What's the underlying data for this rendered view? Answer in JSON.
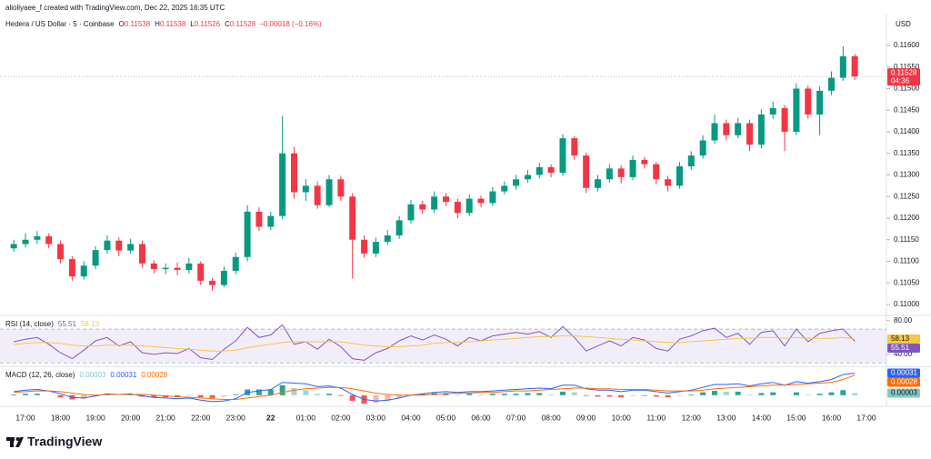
{
  "header": {
    "author_line": "alioliyaee_f created with TradingView.com, Dec 22, 2025 16:35 UTC",
    "symbol": "Hedera / US Dollar · 5 · Coinbase",
    "ohlc": [
      {
        "key": "O",
        "value": "0.11538"
      },
      {
        "key": "H",
        "value": "0.11538"
      },
      {
        "key": "L",
        "value": "0.11526"
      },
      {
        "key": "C",
        "value": "0.11528"
      }
    ],
    "change": "−0.00018 (−0.16%)"
  },
  "footer": {
    "brand": "TradingView"
  },
  "chart_data": [
    {
      "type": "candlestick",
      "currency": "USD",
      "countdown": "04:36",
      "up_color": "#089981",
      "down_color": "#f23645",
      "categories": [
        null,
        "17:00",
        null,
        null,
        "18:00",
        null,
        null,
        "19:00",
        null,
        null,
        "20:00",
        null,
        null,
        "21:00",
        null,
        null,
        "22:00",
        null,
        null,
        "23:00",
        null,
        null,
        "22",
        null,
        null,
        "01:00",
        null,
        null,
        "02:00",
        null,
        null,
        "03:00",
        null,
        null,
        "04:00",
        null,
        null,
        "05:00",
        null,
        null,
        "06:00",
        null,
        null,
        "07:00",
        null,
        null,
        "08:00",
        null,
        null,
        "09:00",
        null,
        null,
        "10:00",
        null,
        null,
        "11:00",
        null,
        null,
        "12:00",
        null,
        null,
        "13:00",
        null,
        null,
        "14:00",
        null,
        null,
        "15:00",
        null,
        null,
        "16:00",
        null,
        null,
        "17:00"
      ],
      "open": [
        0.1113,
        0.1114,
        0.1115,
        0.11158,
        0.1114,
        0.11105,
        0.11065,
        0.1109,
        0.11126,
        0.11148,
        0.11125,
        0.1114,
        0.11095,
        0.11082,
        0.11085,
        0.1108,
        0.11095,
        0.11055,
        0.11045,
        0.11078,
        0.1111,
        0.11215,
        0.1118,
        0.11205,
        0.1135,
        0.1126,
        0.11275,
        0.1123,
        0.1129,
        0.1125,
        0.1115,
        0.11118,
        0.11145,
        0.1116,
        0.11195,
        0.11232,
        0.1122,
        0.1125,
        0.11238,
        0.11212,
        0.11245,
        0.11235,
        0.11262,
        0.11275,
        0.1129,
        0.113,
        0.11318,
        0.11305,
        0.11385,
        0.11345,
        0.1127,
        0.1129,
        0.11315,
        0.11295,
        0.11335,
        0.11325,
        0.1129,
        0.11275,
        0.1132,
        0.11345,
        0.1138,
        0.1142,
        0.11392,
        0.1142,
        0.1137,
        0.1144,
        0.11455,
        0.114,
        0.115,
        0.1144,
        0.11495,
        0.11525,
        0.11575,
        null
      ],
      "high": [
        0.1115,
        0.11165,
        0.1117,
        0.11165,
        0.11148,
        0.11112,
        0.111,
        0.11135,
        0.1116,
        0.11155,
        0.11152,
        0.11148,
        0.11102,
        0.11095,
        0.11098,
        0.11108,
        0.111,
        0.11062,
        0.11088,
        0.1112,
        0.1123,
        0.11225,
        0.11215,
        0.11436,
        0.11365,
        0.1129,
        0.11285,
        0.113,
        0.11298,
        0.11258,
        0.1116,
        0.11155,
        0.11172,
        0.11205,
        0.11242,
        0.1124,
        0.11262,
        0.11258,
        0.11245,
        0.11255,
        0.11252,
        0.11272,
        0.11285,
        0.113,
        0.11312,
        0.11328,
        0.11325,
        0.11395,
        0.1139,
        0.11352,
        0.113,
        0.11325,
        0.11322,
        0.11345,
        0.11342,
        0.1133,
        0.11298,
        0.1133,
        0.11355,
        0.11392,
        0.1144,
        0.11428,
        0.11432,
        0.11428,
        0.11452,
        0.1147,
        0.11462,
        0.11512,
        0.11508,
        0.11505,
        0.1154,
        0.11598,
        0.1158,
        null
      ],
      "low": [
        0.11122,
        0.11132,
        0.1114,
        0.1113,
        0.11095,
        0.11055,
        0.11058,
        0.11082,
        0.11118,
        0.11112,
        0.11118,
        0.11085,
        0.11072,
        0.1107,
        0.11068,
        0.11072,
        0.11045,
        0.11032,
        0.1104,
        0.1107,
        0.111,
        0.1117,
        0.11172,
        0.11198,
        0.11245,
        0.1124,
        0.11222,
        0.11225,
        0.1124,
        0.1106,
        0.11108,
        0.1111,
        0.11138,
        0.11152,
        0.11188,
        0.1121,
        0.11212,
        0.11228,
        0.112,
        0.11205,
        0.11225,
        0.11228,
        0.11255,
        0.11266,
        0.11282,
        0.11292,
        0.11295,
        0.11298,
        0.11335,
        0.11258,
        0.11262,
        0.11282,
        0.1128,
        0.11288,
        0.11315,
        0.11278,
        0.11262,
        0.11268,
        0.11312,
        0.11338,
        0.11372,
        0.1138,
        0.11385,
        0.11355,
        0.11362,
        0.1143,
        0.11355,
        0.11392,
        0.1143,
        0.11392,
        0.11485,
        0.11518,
        0.1152,
        null
      ],
      "close": [
        0.1114,
        0.1115,
        0.11158,
        0.1114,
        0.11105,
        0.11065,
        0.1109,
        0.11126,
        0.11148,
        0.11125,
        0.1114,
        0.11095,
        0.11082,
        0.11085,
        0.1108,
        0.11095,
        0.11055,
        0.11045,
        0.11078,
        0.1111,
        0.11215,
        0.1118,
        0.11205,
        0.1135,
        0.1126,
        0.11275,
        0.1123,
        0.1129,
        0.1125,
        0.1115,
        0.11118,
        0.11145,
        0.1116,
        0.11195,
        0.11232,
        0.1122,
        0.1125,
        0.11238,
        0.11212,
        0.11245,
        0.11235,
        0.11262,
        0.11275,
        0.1129,
        0.113,
        0.11318,
        0.11305,
        0.11385,
        0.11345,
        0.1127,
        0.1129,
        0.11315,
        0.11295,
        0.11335,
        0.11325,
        0.1129,
        0.11275,
        0.1132,
        0.11345,
        0.1138,
        0.1142,
        0.11392,
        0.1142,
        0.1137,
        0.1144,
        0.11455,
        0.114,
        0.115,
        0.1144,
        0.11495,
        0.11525,
        0.11575,
        0.11528,
        null
      ],
      "ylim": [
        0.10979,
        0.11621
      ],
      "yticks": [
        {
          "value": 0.11,
          "label": "0.11000"
        },
        {
          "value": 0.1105,
          "label": "0.11050"
        },
        {
          "value": 0.111,
          "label": "0.11100"
        },
        {
          "value": 0.1115,
          "label": "0.11150"
        },
        {
          "value": 0.112,
          "label": "0.11200"
        },
        {
          "value": 0.1125,
          "label": "0.11250"
        },
        {
          "value": 0.113,
          "label": "0.11300"
        },
        {
          "value": 0.1135,
          "label": "0.11350"
        },
        {
          "value": 0.114,
          "label": "0.11400"
        },
        {
          "value": 0.1145,
          "label": "0.11450"
        },
        {
          "value": 0.115,
          "label": "0.11500"
        },
        {
          "value": 0.1155,
          "label": "0.11550"
        },
        {
          "value": 0.116,
          "label": "0.11600"
        }
      ]
    },
    {
      "type": "line",
      "title": "RSI (14, close)",
      "band": [
        30,
        70
      ],
      "band_color": "#7e57c2",
      "ylim": [
        27,
        84
      ],
      "yticks": [
        {
          "value": 80,
          "label": "80.00"
        },
        {
          "value": 40,
          "label": "40.00"
        }
      ],
      "series": [
        {
          "color": "#7e57c2",
          "values": [
            55,
            58,
            60,
            52,
            42,
            35,
            45,
            56,
            60,
            50,
            55,
            42,
            40,
            42,
            41,
            47,
            36,
            34,
            46,
            56,
            72,
            60,
            63,
            75,
            52,
            55,
            46,
            58,
            49,
            35,
            33,
            42,
            47,
            56,
            62,
            57,
            63,
            58,
            50,
            60,
            56,
            62,
            64,
            66,
            64,
            67,
            60,
            73,
            60,
            44,
            50,
            56,
            50,
            60,
            57,
            47,
            44,
            58,
            62,
            68,
            71,
            60,
            65,
            52,
            66,
            68,
            50,
            70,
            55,
            65,
            68,
            70,
            55.51,
            null
          ]
        },
        {
          "color": "#f7c548",
          "values": [
            52,
            53,
            54,
            54,
            53,
            51,
            50,
            50,
            51,
            51,
            51,
            50,
            49,
            48,
            47,
            46,
            45,
            44,
            44,
            45,
            48,
            50,
            52,
            54,
            55,
            55,
            55,
            55,
            55,
            53,
            51,
            50,
            49,
            49,
            50,
            51,
            53,
            54,
            54,
            55,
            56,
            57,
            58,
            59,
            60,
            61,
            61,
            62,
            62,
            61,
            60,
            59,
            58,
            57,
            56,
            55,
            54,
            54,
            55,
            56,
            57,
            58,
            59,
            59,
            60,
            60,
            59,
            60,
            59,
            59,
            59,
            60,
            58.13,
            null
          ]
        }
      ]
    },
    {
      "type": "line",
      "title": "MACD (12, 26, close)",
      "ylim": [
        -0.00013,
        0.00038
      ],
      "series": [
        {
          "style": "histogram",
          "color": "#26a69a",
          "negative_color": "#ff5252",
          "legend_color": "#80cbc4",
          "values": [
            1e-05,
            2e-05,
            2e-05,
            0,
            -3e-05,
            -6e-05,
            -5e-05,
            -1e-05,
            1e-05,
            0,
            1e-05,
            -2e-05,
            -3e-05,
            -3e-05,
            -3e-05,
            -1e-05,
            -3e-05,
            -4e-05,
            -2e-05,
            1e-05,
            8e-05,
            8e-05,
            8e-05,
            0.00014,
            0.0001,
            7e-05,
            2e-05,
            2e-05,
            -1e-05,
            -8e-05,
            -0.00012,
            -0.00011,
            -8e-05,
            -4e-05,
            0,
            2e-05,
            3e-05,
            3e-05,
            1e-05,
            2e-05,
            1e-05,
            2e-05,
            2e-05,
            2e-05,
            3e-05,
            3e-05,
            1e-05,
            5e-05,
            4e-05,
            -1e-05,
            -2e-05,
            -2e-05,
            -3e-05,
            -1e-05,
            -1e-05,
            -2e-05,
            -3e-05,
            -1e-05,
            1e-05,
            4e-05,
            6e-05,
            5e-05,
            5e-05,
            1e-05,
            3e-05,
            4e-05,
            0,
            4e-05,
            1e-05,
            2e-05,
            4e-05,
            7e-05,
            3e-05,
            null
          ]
        },
        {
          "color": "#2962ff",
          "values": [
            5e-05,
            7e-05,
            8e-05,
            6e-05,
            2e-05,
            -3e-05,
            -4e-05,
            -1e-05,
            2e-05,
            1e-05,
            2e-05,
            -1e-05,
            -3e-05,
            -4e-05,
            -5e-05,
            -4e-05,
            -7e-05,
            -9e-05,
            -8e-05,
            -5e-05,
            4e-05,
            6e-05,
            8e-05,
            0.00018,
            0.00017,
            0.00016,
            0.00012,
            0.00013,
            0.0001,
            1e-05,
            -6e-05,
            -8e-05,
            -7e-05,
            -4e-05,
            0,
            2e-05,
            4e-05,
            5e-05,
            4e-05,
            5e-05,
            5e-05,
            6e-05,
            7e-05,
            8e-05,
            9e-05,
            0.0001,
            9e-05,
            0.00014,
            0.00014,
            9e-05,
            7e-05,
            7e-05,
            5e-05,
            7e-05,
            7e-05,
            5e-05,
            3e-05,
            5e-05,
            7e-05,
            0.00011,
            0.00015,
            0.00015,
            0.00016,
            0.00013,
            0.00016,
            0.00018,
            0.00014,
            0.00019,
            0.00017,
            0.00019,
            0.00022,
            0.00029,
            0.00031,
            null
          ]
        },
        {
          "color": "#ff6d00",
          "values": [
            4e-05,
            5e-05,
            6e-05,
            6e-05,
            5e-05,
            3e-05,
            1e-05,
            0,
            1e-05,
            1e-05,
            1e-05,
            1e-05,
            0,
            -1e-05,
            -2e-05,
            -3e-05,
            -4e-05,
            -5e-05,
            -6e-05,
            -6e-05,
            -4e-05,
            -2e-05,
            0,
            4e-05,
            7e-05,
            9e-05,
            0.0001,
            0.00011,
            0.00011,
            9e-05,
            6e-05,
            3e-05,
            1e-05,
            0,
            0,
            0,
            1e-05,
            2e-05,
            3e-05,
            3e-05,
            4e-05,
            4e-05,
            5e-05,
            6e-05,
            6e-05,
            7e-05,
            8e-05,
            9e-05,
            0.0001,
            0.0001,
            9e-05,
            9e-05,
            8e-05,
            8e-05,
            8e-05,
            7e-05,
            6e-05,
            6e-05,
            6e-05,
            7e-05,
            9e-05,
            0.0001,
            0.00011,
            0.00012,
            0.00013,
            0.00014,
            0.00014,
            0.00015,
            0.00016,
            0.00017,
            0.00018,
            0.00022,
            0.00028,
            null
          ]
        }
      ]
    }
  ]
}
